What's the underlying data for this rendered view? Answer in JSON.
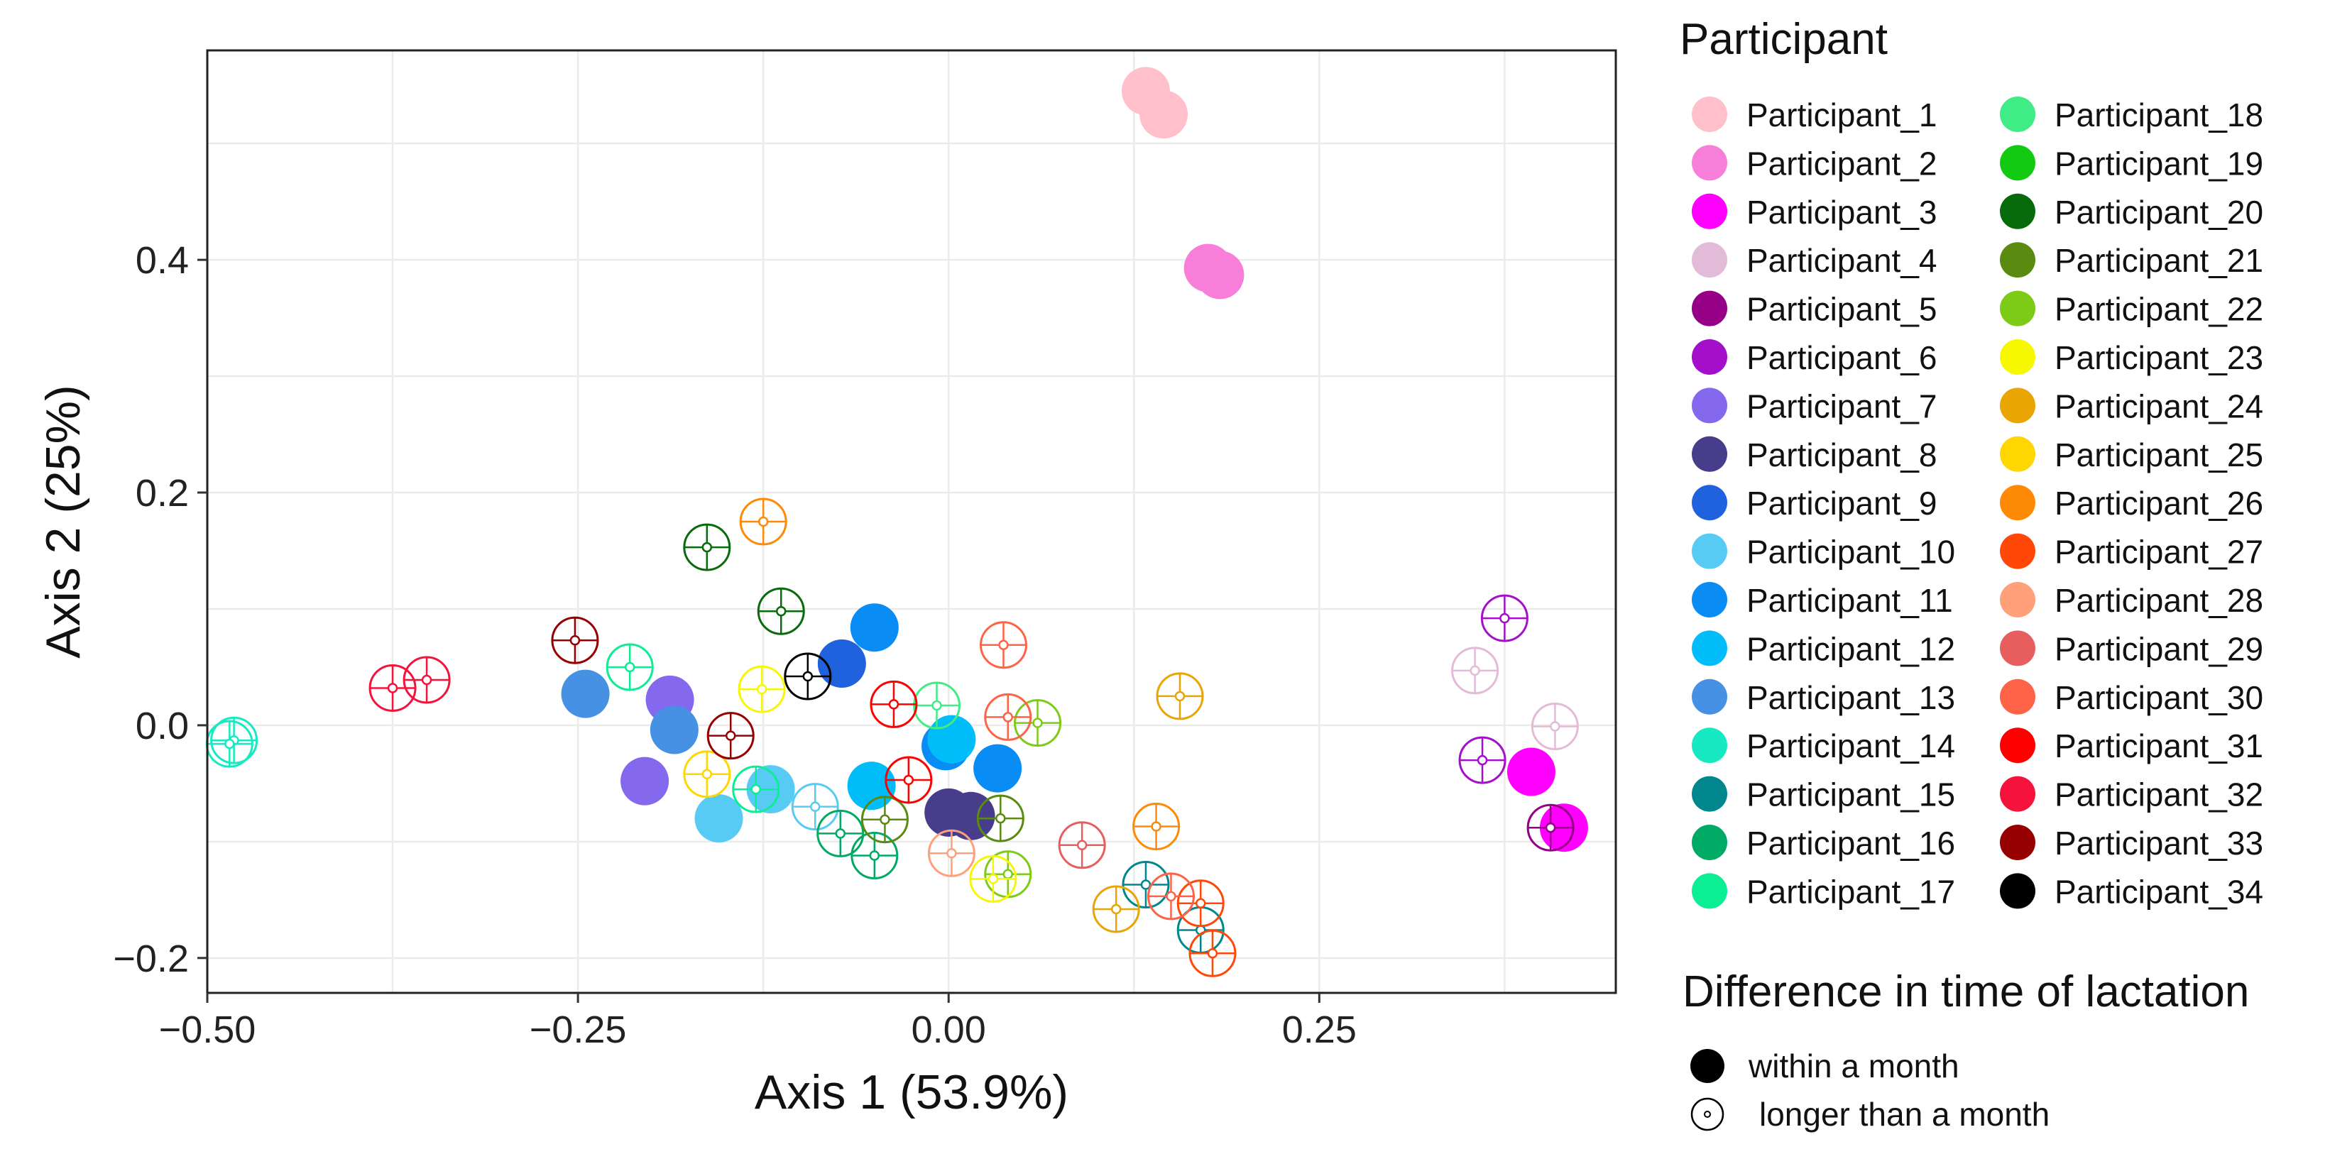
{
  "chart_data": {
    "type": "scatter",
    "xlabel": "Axis 1   (53.9%)",
    "ylabel": "Axis 2   (25%)",
    "xlim": [
      -0.5,
      0.45
    ],
    "ylim": [
      -0.23,
      0.58
    ],
    "x_ticks": [
      -0.5,
      -0.25,
      0.0,
      0.25
    ],
    "x_tick_labels": [
      "−0.50",
      "−0.25",
      "0.00",
      "0.25"
    ],
    "y_ticks": [
      -0.2,
      0.0,
      0.2,
      0.4
    ],
    "y_tick_labels": [
      "−0.2",
      "0.0",
      "0.2",
      "0.4"
    ],
    "grid": true,
    "legend_participant_title": "Participant",
    "legend_shape_title": "Difference in time of lactation",
    "shape_within": "within a month",
    "shape_longer": "longer than a month",
    "participants": [
      {
        "name": "Participant_1",
        "color": "#FFC0CB"
      },
      {
        "name": "Participant_2",
        "color": "#F77FD9"
      },
      {
        "name": "Participant_3",
        "color": "#FF00FF"
      },
      {
        "name": "Participant_4",
        "color": "#E2BBD8"
      },
      {
        "name": "Participant_5",
        "color": "#960086"
      },
      {
        "name": "Participant_6",
        "color": "#A30FCB"
      },
      {
        "name": "Participant_7",
        "color": "#8468EE"
      },
      {
        "name": "Participant_8",
        "color": "#483D8B"
      },
      {
        "name": "Participant_9",
        "color": "#2061DD"
      },
      {
        "name": "Participant_10",
        "color": "#58CBF5"
      },
      {
        "name": "Participant_11",
        "color": "#0A8CF5"
      },
      {
        "name": "Participant_12",
        "color": "#00BDFA"
      },
      {
        "name": "Participant_13",
        "color": "#4691E4"
      },
      {
        "name": "Participant_14",
        "color": "#17EAC3"
      },
      {
        "name": "Participant_15",
        "color": "#00878E"
      },
      {
        "name": "Participant_16",
        "color": "#00AA64"
      },
      {
        "name": "Participant_17",
        "color": "#0BEE93"
      },
      {
        "name": "Participant_18",
        "color": "#40EC86"
      },
      {
        "name": "Participant_19",
        "color": "#13CA13"
      },
      {
        "name": "Participant_20",
        "color": "#076B0C"
      },
      {
        "name": "Participant_21",
        "color": "#5A8A10"
      },
      {
        "name": "Participant_22",
        "color": "#7DCA17"
      },
      {
        "name": "Participant_23",
        "color": "#F7F700"
      },
      {
        "name": "Participant_24",
        "color": "#E8A504"
      },
      {
        "name": "Participant_25",
        "color": "#FFD700"
      },
      {
        "name": "Participant_26",
        "color": "#FF8A06"
      },
      {
        "name": "Participant_27",
        "color": "#FF4808"
      },
      {
        "name": "Participant_28",
        "color": "#FFA07A"
      },
      {
        "name": "Participant_29",
        "color": "#E85E5E"
      },
      {
        "name": "Participant_30",
        "color": "#FF6347"
      },
      {
        "name": "Participant_31",
        "color": "#FF0000"
      },
      {
        "name": "Participant_32",
        "color": "#F5133C"
      },
      {
        "name": "Participant_33",
        "color": "#960000"
      },
      {
        "name": "Participant_34",
        "color": "#000000"
      }
    ],
    "points": [
      {
        "p": 1,
        "x": 0.133,
        "y": 0.545,
        "s": "within"
      },
      {
        "p": 1,
        "x": 0.145,
        "y": 0.525,
        "s": "within"
      },
      {
        "p": 2,
        "x": 0.175,
        "y": 0.393,
        "s": "within"
      },
      {
        "p": 2,
        "x": 0.183,
        "y": 0.387,
        "s": "within"
      },
      {
        "p": 3,
        "x": 0.393,
        "y": -0.04,
        "s": "within"
      },
      {
        "p": 3,
        "x": 0.415,
        "y": -0.088,
        "s": "within"
      },
      {
        "p": 4,
        "x": 0.355,
        "y": 0.047,
        "s": "longer"
      },
      {
        "p": 4,
        "x": 0.409,
        "y": -0.001,
        "s": "longer"
      },
      {
        "p": 5,
        "x": 0.406,
        "y": -0.088,
        "s": "longer"
      },
      {
        "p": 6,
        "x": 0.375,
        "y": 0.092,
        "s": "longer"
      },
      {
        "p": 6,
        "x": 0.36,
        "y": -0.03,
        "s": "longer"
      },
      {
        "p": 7,
        "x": -0.188,
        "y": 0.022,
        "s": "within"
      },
      {
        "p": 7,
        "x": -0.205,
        "y": -0.048,
        "s": "within"
      },
      {
        "p": 8,
        "x": 0.0,
        "y": -0.075,
        "s": "within"
      },
      {
        "p": 8,
        "x": 0.015,
        "y": -0.078,
        "s": "within"
      },
      {
        "p": 9,
        "x": -0.072,
        "y": 0.053,
        "s": "within"
      },
      {
        "p": 10,
        "x": -0.12,
        "y": -0.055,
        "s": "within"
      },
      {
        "p": 10,
        "x": -0.155,
        "y": -0.08,
        "s": "within"
      },
      {
        "p": 10,
        "x": -0.09,
        "y": -0.07,
        "s": "longer"
      },
      {
        "p": 11,
        "x": -0.05,
        "y": 0.084,
        "s": "within"
      },
      {
        "p": 11,
        "x": 0.033,
        "y": -0.037,
        "s": "within"
      },
      {
        "p": 11,
        "x": -0.002,
        "y": -0.018,
        "s": "within"
      },
      {
        "p": 12,
        "x": -0.052,
        "y": -0.052,
        "s": "within"
      },
      {
        "p": 12,
        "x": 0.002,
        "y": -0.012,
        "s": "within"
      },
      {
        "p": 13,
        "x": -0.245,
        "y": 0.027,
        "s": "within"
      },
      {
        "p": 13,
        "x": -0.185,
        "y": -0.004,
        "s": "within"
      },
      {
        "p": 14,
        "x": -0.482,
        "y": -0.013,
        "s": "longer"
      },
      {
        "p": 14,
        "x": -0.485,
        "y": -0.016,
        "s": "longer"
      },
      {
        "p": 15,
        "x": 0.133,
        "y": -0.137,
        "s": "longer"
      },
      {
        "p": 15,
        "x": 0.17,
        "y": -0.176,
        "s": "longer"
      },
      {
        "p": 16,
        "x": -0.073,
        "y": -0.093,
        "s": "longer"
      },
      {
        "p": 16,
        "x": -0.05,
        "y": -0.112,
        "s": "longer"
      },
      {
        "p": 17,
        "x": -0.13,
        "y": -0.055,
        "s": "longer"
      },
      {
        "p": 17,
        "x": -0.215,
        "y": 0.05,
        "s": "longer"
      },
      {
        "p": 18,
        "x": -0.008,
        "y": 0.017,
        "s": "longer"
      },
      {
        "p": 20,
        "x": -0.163,
        "y": 0.153,
        "s": "longer"
      },
      {
        "p": 20,
        "x": -0.113,
        "y": 0.098,
        "s": "longer"
      },
      {
        "p": 21,
        "x": -0.043,
        "y": -0.081,
        "s": "longer"
      },
      {
        "p": 21,
        "x": 0.035,
        "y": -0.08,
        "s": "longer"
      },
      {
        "p": 22,
        "x": 0.06,
        "y": 0.002,
        "s": "longer"
      },
      {
        "p": 22,
        "x": 0.04,
        "y": -0.128,
        "s": "longer"
      },
      {
        "p": 23,
        "x": -0.126,
        "y": 0.031,
        "s": "longer"
      },
      {
        "p": 23,
        "x": 0.03,
        "y": -0.132,
        "s": "longer"
      },
      {
        "p": 24,
        "x": 0.156,
        "y": 0.025,
        "s": "longer"
      },
      {
        "p": 24,
        "x": 0.113,
        "y": -0.158,
        "s": "longer"
      },
      {
        "p": 25,
        "x": -0.163,
        "y": -0.042,
        "s": "longer"
      },
      {
        "p": 26,
        "x": -0.125,
        "y": 0.175,
        "s": "longer"
      },
      {
        "p": 26,
        "x": 0.14,
        "y": -0.087,
        "s": "longer"
      },
      {
        "p": 27,
        "x": 0.178,
        "y": -0.196,
        "s": "longer"
      },
      {
        "p": 27,
        "x": 0.17,
        "y": -0.153,
        "s": "longer"
      },
      {
        "p": 28,
        "x": 0.002,
        "y": -0.11,
        "s": "longer"
      },
      {
        "p": 29,
        "x": 0.09,
        "y": -0.103,
        "s": "longer"
      },
      {
        "p": 30,
        "x": 0.037,
        "y": 0.069,
        "s": "longer"
      },
      {
        "p": 30,
        "x": 0.04,
        "y": 0.007,
        "s": "longer"
      },
      {
        "p": 30,
        "x": 0.15,
        "y": -0.147,
        "s": "longer"
      },
      {
        "p": 31,
        "x": -0.037,
        "y": 0.018,
        "s": "longer"
      },
      {
        "p": 31,
        "x": -0.027,
        "y": -0.047,
        "s": "longer"
      },
      {
        "p": 32,
        "x": -0.352,
        "y": 0.039,
        "s": "longer"
      },
      {
        "p": 32,
        "x": -0.375,
        "y": 0.032,
        "s": "longer"
      },
      {
        "p": 33,
        "x": -0.252,
        "y": 0.073,
        "s": "longer"
      },
      {
        "p": 33,
        "x": -0.147,
        "y": -0.009,
        "s": "longer"
      },
      {
        "p": 34,
        "x": -0.095,
        "y": 0.042,
        "s": "longer"
      }
    ]
  }
}
